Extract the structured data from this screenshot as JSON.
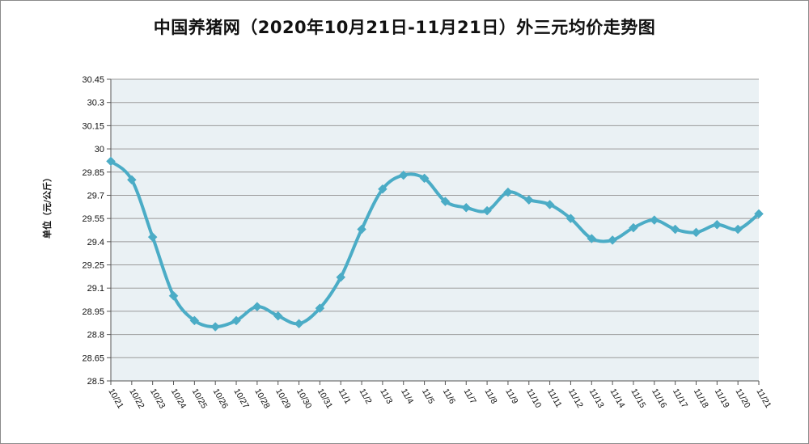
{
  "chart_data": {
    "type": "line",
    "title": "中国养猪网（2020年10月21日-11月21日）外三元均价走势图",
    "ylabel": "单位（元/公斤）",
    "xlabel": "",
    "categories": [
      "10/21",
      "10/22",
      "10/23",
      "10/24",
      "10/25",
      "10/26",
      "10/27",
      "10/28",
      "10/29",
      "10/30",
      "10/31",
      "11/1",
      "11/2",
      "11/3",
      "11/4",
      "11/5",
      "11/6",
      "11/7",
      "11/8",
      "11/9",
      "11/10",
      "11/11",
      "11/12",
      "11/13",
      "11/14",
      "11/15",
      "11/16",
      "11/17",
      "11/18",
      "11/19",
      "11/20",
      "11/21"
    ],
    "values": [
      29.92,
      29.8,
      29.43,
      29.05,
      28.89,
      28.85,
      28.89,
      28.98,
      28.92,
      28.87,
      28.97,
      29.17,
      29.48,
      29.74,
      29.83,
      29.81,
      29.66,
      29.62,
      29.6,
      29.72,
      29.67,
      29.64,
      29.55,
      29.42,
      29.41,
      29.49,
      29.54,
      29.48,
      29.46,
      29.51,
      29.48,
      29.58
    ],
    "ylim": [
      28.5,
      30.45
    ],
    "yticks": [
      "28.5",
      "28.65",
      "28.8",
      "28.95",
      "29.1",
      "29.25",
      "29.4",
      "29.55",
      "29.7",
      "29.85",
      "30",
      "30.15",
      "30.3",
      "30.45"
    ],
    "grid": true,
    "colors": {
      "line": "#4bacc6",
      "plot_bg": "#eaf1f4",
      "grid": "#9a9a9a"
    }
  }
}
